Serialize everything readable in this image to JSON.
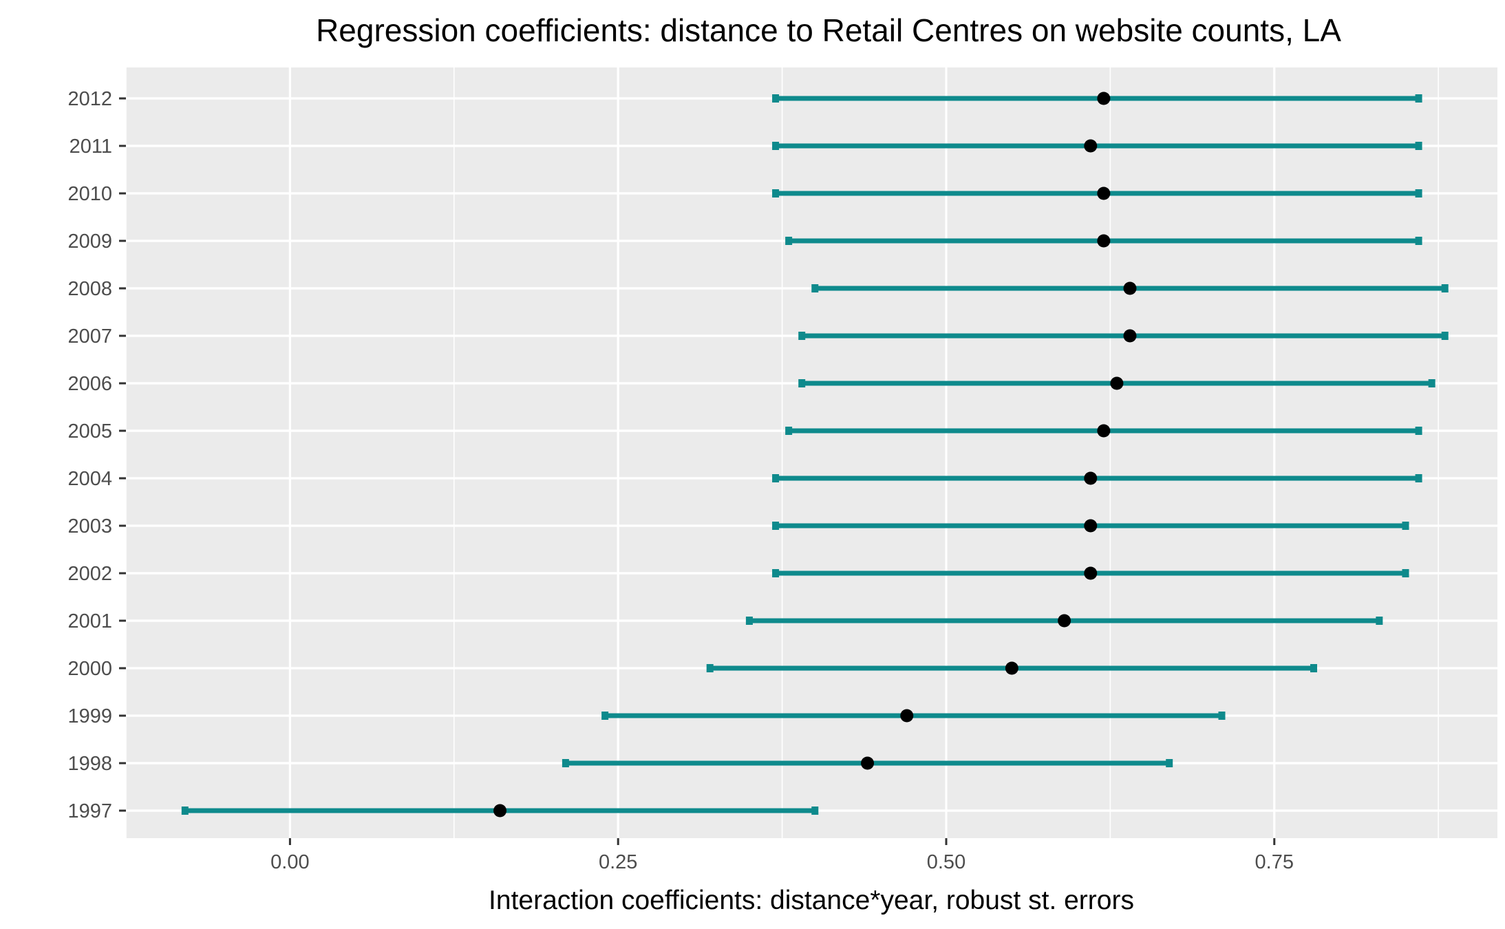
{
  "chart_data": {
    "type": "errorbar",
    "title": "Regression coefficients: distance to Retail Centres on website counts, LA",
    "xlabel": "Interaction coefficients: distance*year, robust st. errors",
    "ylabel": "",
    "xlim": [
      -0.125,
      0.92
    ],
    "x_ticks": [
      0.0,
      0.25,
      0.5,
      0.75
    ],
    "x_tick_labels": [
      "0.00",
      "0.25",
      "0.50",
      "0.75"
    ],
    "x_minor_ticks": [
      -0.125,
      0.125,
      0.375,
      0.625,
      0.875
    ],
    "categories": [
      "1997",
      "1998",
      "1999",
      "2000",
      "2001",
      "2002",
      "2003",
      "2004",
      "2005",
      "2006",
      "2007",
      "2008",
      "2009",
      "2010",
      "2011",
      "2012"
    ],
    "estimates": [
      0.16,
      0.44,
      0.47,
      0.55,
      0.59,
      0.61,
      0.61,
      0.61,
      0.62,
      0.63,
      0.64,
      0.64,
      0.62,
      0.62,
      0.61,
      0.62
    ],
    "lower": [
      -0.08,
      0.21,
      0.24,
      0.32,
      0.35,
      0.37,
      0.37,
      0.37,
      0.38,
      0.39,
      0.39,
      0.4,
      0.38,
      0.37,
      0.37,
      0.37
    ],
    "upper": [
      0.4,
      0.67,
      0.71,
      0.78,
      0.83,
      0.85,
      0.85,
      0.86,
      0.86,
      0.87,
      0.88,
      0.88,
      0.86,
      0.86,
      0.86,
      0.86
    ],
    "grid": true,
    "colors": {
      "interval": "#0e8a8c",
      "point": "#000000",
      "panel": "#ebebeb",
      "grid": "#ffffff"
    }
  }
}
